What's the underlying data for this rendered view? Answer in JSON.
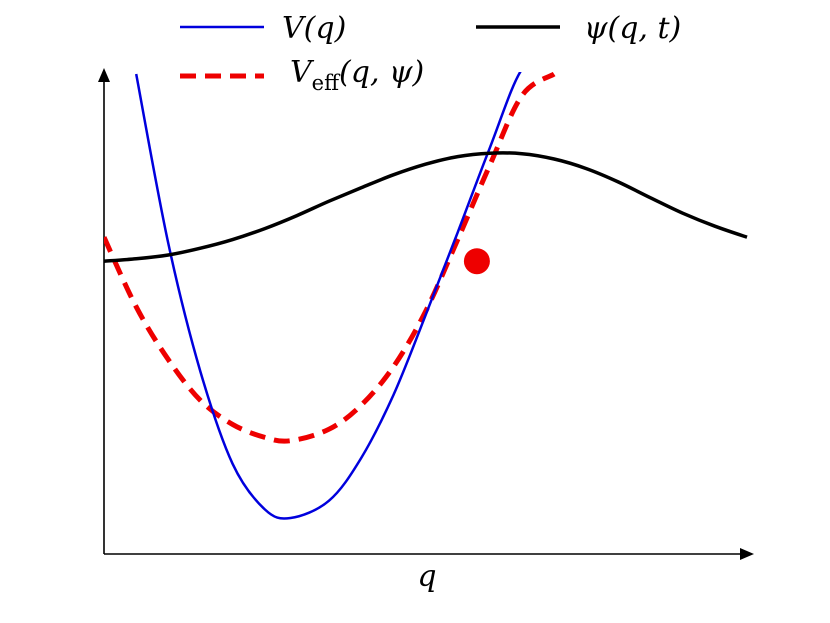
{
  "chart_data": {
    "type": "line",
    "xlabel": "q",
    "ylabel": "",
    "xlim": [
      0,
      10
    ],
    "ylim": [
      0,
      10
    ],
    "axis_ticks": false,
    "grid": false,
    "legend_position": "top",
    "series": [
      {
        "name": "V(q)",
        "legend_main": "V(q)",
        "color": "#0000dd",
        "style": "solid",
        "x": [
          0.5,
          1.0,
          1.5,
          2.0,
          2.5,
          2.9,
          3.5,
          4.0,
          4.5,
          5.0,
          5.5,
          6.0,
          6.5,
          6.9
        ],
        "y": [
          10.0,
          6.47,
          3.8,
          1.88,
          0.93,
          0.75,
          1.11,
          2.0,
          3.31,
          4.97,
          6.7,
          8.46,
          10.1,
          10.2
        ]
      },
      {
        "name": "V_eff(q, ψ)",
        "legend_main": "V",
        "legend_sub": "eff",
        "legend_rest": "(q, ψ)",
        "color": "#ee0000",
        "style": "dashed",
        "x": [
          0.0,
          0.5,
          1.0,
          1.5,
          2.0,
          2.5,
          2.9,
          3.5,
          4.0,
          4.5,
          5.0,
          5.5,
          6.0,
          6.5,
          7.0
        ],
        "y": [
          6.6,
          5.15,
          4.05,
          3.2,
          2.7,
          2.43,
          2.36,
          2.6,
          3.1,
          3.9,
          5.05,
          6.55,
          8.1,
          9.55,
          10.0
        ]
      },
      {
        "name": "ψ(q, t)",
        "legend_main": "ψ(q, t)",
        "color": "#000000",
        "style": "solid",
        "x": [
          0.0,
          0.5,
          1.0,
          1.5,
          2.0,
          2.5,
          3.0,
          3.5,
          4.0,
          4.5,
          5.0,
          5.5,
          6.0,
          6.5,
          7.0,
          7.5,
          8.0,
          8.5,
          9.0,
          9.5,
          10.0
        ],
        "y": [
          6.1,
          6.15,
          6.23,
          6.37,
          6.55,
          6.78,
          7.05,
          7.35,
          7.63,
          7.9,
          8.12,
          8.28,
          8.35,
          8.34,
          8.23,
          8.03,
          7.75,
          7.42,
          7.1,
          6.83,
          6.6
        ]
      }
    ],
    "marker": {
      "x": 5.8,
      "y": 6.1,
      "color": "#ee0000"
    }
  }
}
